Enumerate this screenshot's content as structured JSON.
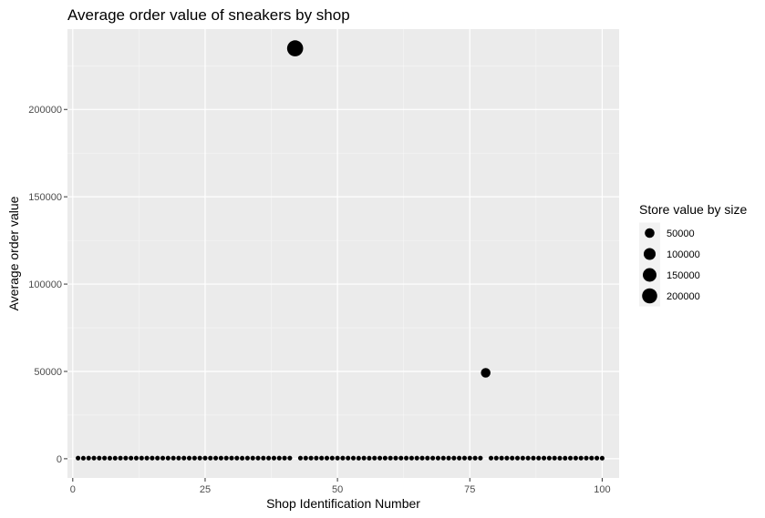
{
  "chart_data": {
    "type": "scatter",
    "title": "Average order value of sneakers by shop",
    "xlabel": "Shop Identification Number",
    "ylabel": "Average order value",
    "xlim": [
      -1,
      103.2
    ],
    "ylim": [
      -11000,
      246000
    ],
    "x_ticks": [
      0,
      25,
      50,
      75,
      100
    ],
    "y_ticks": [
      0,
      50000,
      100000,
      150000,
      200000
    ],
    "grid": true,
    "legend": {
      "title": "Store value by size",
      "placement": "right",
      "entries": [
        {
          "label": "50000",
          "value": 50000
        },
        {
          "label": "100000",
          "value": 100000
        },
        {
          "label": "150000",
          "value": 150000
        },
        {
          "label": "200000",
          "value": 200000
        }
      ]
    },
    "points": [
      {
        "x": 1,
        "y": 400
      },
      {
        "x": 2,
        "y": 300
      },
      {
        "x": 3,
        "y": 400
      },
      {
        "x": 4,
        "y": 400
      },
      {
        "x": 5,
        "y": 400
      },
      {
        "x": 6,
        "y": 400
      },
      {
        "x": 7,
        "y": 300
      },
      {
        "x": 8,
        "y": 300
      },
      {
        "x": 9,
        "y": 400
      },
      {
        "x": 10,
        "y": 400
      },
      {
        "x": 11,
        "y": 400
      },
      {
        "x": 12,
        "y": 400
      },
      {
        "x": 13,
        "y": 400
      },
      {
        "x": 14,
        "y": 400
      },
      {
        "x": 15,
        "y": 400
      },
      {
        "x": 16,
        "y": 400
      },
      {
        "x": 17,
        "y": 400
      },
      {
        "x": 18,
        "y": 400
      },
      {
        "x": 19,
        "y": 400
      },
      {
        "x": 20,
        "y": 400
      },
      {
        "x": 21,
        "y": 400
      },
      {
        "x": 22,
        "y": 400
      },
      {
        "x": 23,
        "y": 400
      },
      {
        "x": 24,
        "y": 400
      },
      {
        "x": 25,
        "y": 400
      },
      {
        "x": 26,
        "y": 400
      },
      {
        "x": 27,
        "y": 400
      },
      {
        "x": 28,
        "y": 400
      },
      {
        "x": 29,
        "y": 400
      },
      {
        "x": 30,
        "y": 400
      },
      {
        "x": 31,
        "y": 400
      },
      {
        "x": 32,
        "y": 300
      },
      {
        "x": 33,
        "y": 400
      },
      {
        "x": 34,
        "y": 400
      },
      {
        "x": 35,
        "y": 400
      },
      {
        "x": 36,
        "y": 400
      },
      {
        "x": 37,
        "y": 400
      },
      {
        "x": 38,
        "y": 400
      },
      {
        "x": 39,
        "y": 400
      },
      {
        "x": 40,
        "y": 400
      },
      {
        "x": 41,
        "y": 400
      },
      {
        "x": 42,
        "y": 235000
      },
      {
        "x": 43,
        "y": 400
      },
      {
        "x": 44,
        "y": 400
      },
      {
        "x": 45,
        "y": 400
      },
      {
        "x": 46,
        "y": 400
      },
      {
        "x": 47,
        "y": 400
      },
      {
        "x": 48,
        "y": 400
      },
      {
        "x": 49,
        "y": 400
      },
      {
        "x": 50,
        "y": 400
      },
      {
        "x": 51,
        "y": 400
      },
      {
        "x": 52,
        "y": 400
      },
      {
        "x": 53,
        "y": 400
      },
      {
        "x": 54,
        "y": 300
      },
      {
        "x": 55,
        "y": 400
      },
      {
        "x": 56,
        "y": 300
      },
      {
        "x": 57,
        "y": 400
      },
      {
        "x": 58,
        "y": 400
      },
      {
        "x": 59,
        "y": 400
      },
      {
        "x": 60,
        "y": 400
      },
      {
        "x": 61,
        "y": 400
      },
      {
        "x": 62,
        "y": 400
      },
      {
        "x": 63,
        "y": 400
      },
      {
        "x": 64,
        "y": 400
      },
      {
        "x": 65,
        "y": 400
      },
      {
        "x": 66,
        "y": 400
      },
      {
        "x": 67,
        "y": 400
      },
      {
        "x": 68,
        "y": 400
      },
      {
        "x": 69,
        "y": 400
      },
      {
        "x": 70,
        "y": 400
      },
      {
        "x": 71,
        "y": 400
      },
      {
        "x": 72,
        "y": 400
      },
      {
        "x": 73,
        "y": 400
      },
      {
        "x": 74,
        "y": 400
      },
      {
        "x": 75,
        "y": 400
      },
      {
        "x": 76,
        "y": 400
      },
      {
        "x": 77,
        "y": 400
      },
      {
        "x": 78,
        "y": 49200
      },
      {
        "x": 79,
        "y": 400
      },
      {
        "x": 80,
        "y": 400
      },
      {
        "x": 81,
        "y": 400
      },
      {
        "x": 82,
        "y": 400
      },
      {
        "x": 83,
        "y": 400
      },
      {
        "x": 84,
        "y": 400
      },
      {
        "x": 85,
        "y": 400
      },
      {
        "x": 86,
        "y": 400
      },
      {
        "x": 87,
        "y": 400
      },
      {
        "x": 88,
        "y": 400
      },
      {
        "x": 89,
        "y": 400
      },
      {
        "x": 90,
        "y": 400
      },
      {
        "x": 91,
        "y": 400
      },
      {
        "x": 92,
        "y": 300
      },
      {
        "x": 93,
        "y": 300
      },
      {
        "x": 94,
        "y": 400
      },
      {
        "x": 95,
        "y": 400
      },
      {
        "x": 96,
        "y": 400
      },
      {
        "x": 97,
        "y": 400
      },
      {
        "x": 98,
        "y": 400
      },
      {
        "x": 99,
        "y": 400
      },
      {
        "x": 100,
        "y": 300
      }
    ],
    "point_colors": {
      "panel": "#ebebeb",
      "grid_major": "#ffffff",
      "point": "#000000"
    }
  }
}
